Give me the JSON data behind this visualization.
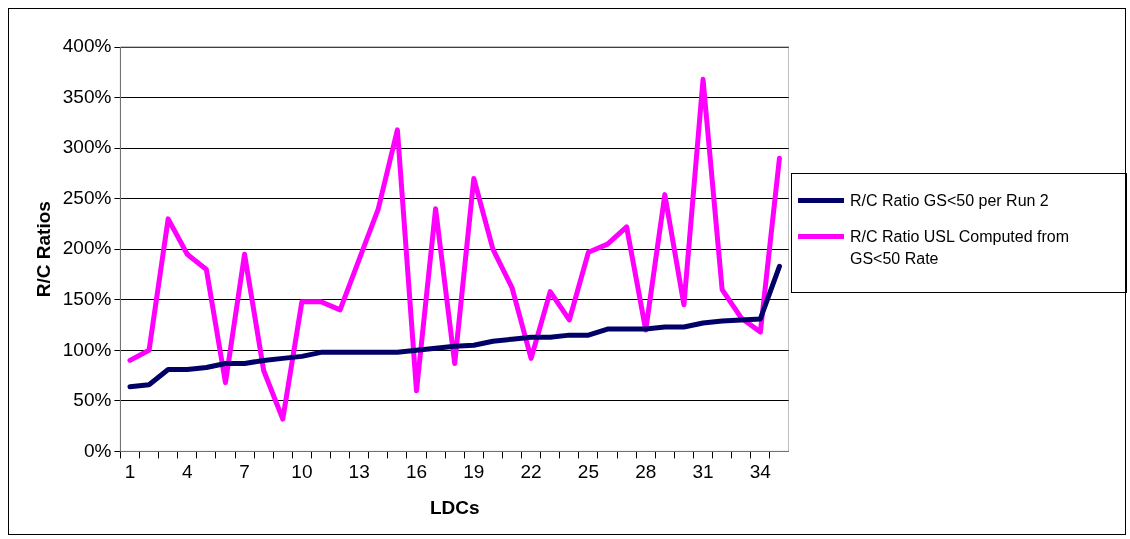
{
  "chart_data": {
    "type": "line",
    "xlabel": "LDCs",
    "ylabel": "R/C Ratios",
    "categories": [
      "1",
      null,
      null,
      "4",
      null,
      null,
      "7",
      null,
      null,
      "10",
      null,
      null,
      "13",
      null,
      null,
      "16",
      null,
      null,
      "19",
      null,
      null,
      "22",
      null,
      null,
      "25",
      null,
      null,
      "28",
      null,
      null,
      "31",
      null,
      null,
      "34",
      null
    ],
    "series": [
      {
        "name": "R/C Ratio GS<50 per Run 2",
        "color": "#000066",
        "values": [
          64,
          66,
          81,
          81,
          83,
          87,
          87,
          90,
          92,
          94,
          98,
          98,
          98,
          98,
          98,
          100,
          102,
          104,
          105,
          109,
          111,
          113,
          113,
          115,
          115,
          121,
          121,
          121,
          123,
          123,
          127,
          129,
          130,
          131,
          183
        ]
      },
      {
        "name": "R/C Ratio USL Computed from GS<50 Rate",
        "color": "#ff00ff",
        "values": [
          90,
          100,
          230,
          195,
          180,
          68,
          195,
          80,
          32,
          148,
          148,
          140,
          190,
          240,
          318,
          60,
          240,
          87,
          270,
          200,
          162,
          92,
          158,
          130,
          197,
          205,
          222,
          120,
          254,
          145,
          368,
          160,
          132,
          118,
          290
        ]
      }
    ],
    "ylim": [
      0,
      400
    ],
    "yticks": [
      {
        "value": 0,
        "label": "0%"
      },
      {
        "value": 50,
        "label": "50%"
      },
      {
        "value": 100,
        "label": "100%"
      },
      {
        "value": 150,
        "label": "150%"
      },
      {
        "value": 200,
        "label": "200%"
      },
      {
        "value": 250,
        "label": "250%"
      },
      {
        "value": 300,
        "label": "300%"
      },
      {
        "value": 350,
        "label": "350%"
      },
      {
        "value": 400,
        "label": "400%"
      }
    ],
    "grid": "y",
    "legend": "right",
    "marker": "none",
    "line_style": "solid"
  }
}
